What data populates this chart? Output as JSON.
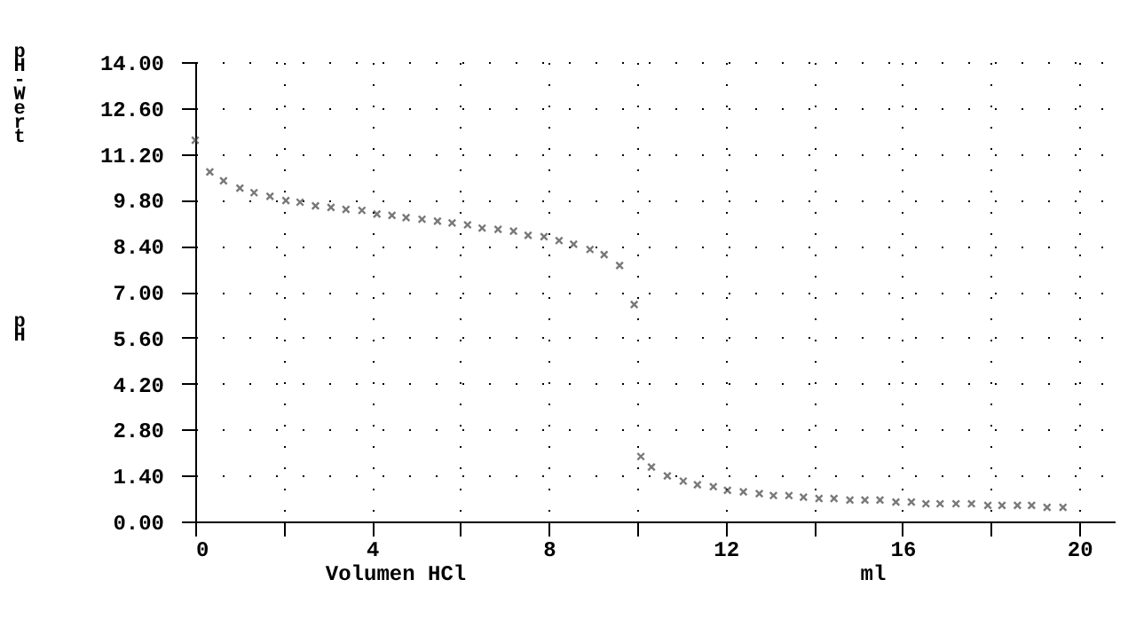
{
  "chart_data": {
    "type": "scatter",
    "xlabel": "Volumen HCl",
    "ylabel": "pH-Wert",
    "annotations": [
      "pH",
      "ml"
    ],
    "x": [
      0,
      0.33,
      0.64,
      1.01,
      1.33,
      1.69,
      2.05,
      2.37,
      2.72,
      3.07,
      3.41,
      3.77,
      4.11,
      4.45,
      4.77,
      5.13,
      5.48,
      5.81,
      6.16,
      6.49,
      6.85,
      7.2,
      7.53,
      7.89,
      8.23,
      8.56,
      8.93,
      9.25,
      9.6,
      9.93,
      10.08,
      10.32,
      10.68,
      11.04,
      11.36,
      11.72,
      12.04,
      12.4,
      12.76,
      13.08,
      13.43,
      13.76,
      14.11,
      14.45,
      14.81,
      15.15,
      15.49,
      15.85,
      16.2,
      16.53,
      16.85,
      17.21,
      17.56,
      17.93,
      18.25,
      18.6,
      18.92,
      19.27,
      19.63
    ],
    "series": [
      {
        "color": "#404040",
        "values": [
          11.62,
          10.65,
          10.38,
          10.16,
          10.02,
          9.91,
          9.78,
          9.73,
          9.62,
          9.57,
          9.51,
          9.48,
          9.37,
          9.33,
          9.26,
          9.21,
          9.15,
          9.1,
          9.04,
          8.94,
          8.9,
          8.85,
          8.72,
          8.68,
          8.56,
          8.45,
          8.29,
          8.13,
          7.8,
          6.61,
          1.98,
          1.66,
          1.39,
          1.23,
          1.12,
          1.06,
          0.95,
          0.9,
          0.85,
          0.79,
          0.79,
          0.74,
          0.7,
          0.7,
          0.65,
          0.65,
          0.65,
          0.59,
          0.59,
          0.54,
          0.54,
          0.54,
          0.54,
          0.49,
          0.49,
          0.49,
          0.49,
          0.43,
          0.43
        ]
      }
    ],
    "xlim": [
      0,
      20.8
    ],
    "xticks": [
      0,
      {
        "value": 2,
        "label": null
      },
      4,
      {
        "value": 6,
        "label": null
      },
      8,
      {
        "value": 10,
        "label": null
      },
      12,
      {
        "value": 14,
        "label": null
      },
      16,
      {
        "value": 18,
        "label": null
      },
      20
    ],
    "ylim": [
      0,
      14
    ],
    "yticks": [
      {
        "value": 0,
        "label": "0.00"
      },
      {
        "value": 1.4,
        "label": "1.40"
      },
      {
        "value": 2.8,
        "label": "2.80"
      },
      {
        "value": 4.2,
        "label": "4.20"
      },
      {
        "value": 5.6,
        "label": "5.60"
      },
      {
        "value": 7,
        "label": "7.00"
      },
      {
        "value": 8.4,
        "label": "8.40"
      },
      {
        "value": 9.8,
        "label": "9.80"
      },
      {
        "value": 11.2,
        "label": "11.20"
      },
      {
        "value": 12.6,
        "label": "12.60"
      },
      {
        "value": 14,
        "label": "14.00"
      }
    ],
    "grid": true,
    "marker": "cross"
  }
}
